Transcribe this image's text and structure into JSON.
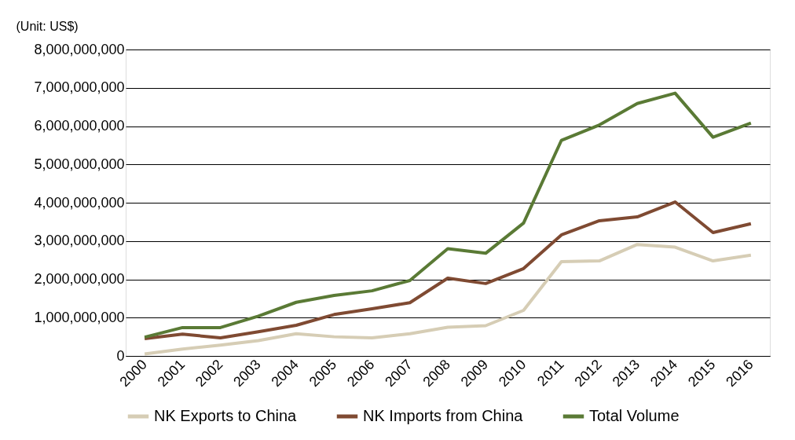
{
  "chart_data": {
    "type": "line",
    "ylabel": "(Unit: US$)",
    "categories": [
      "2000",
      "2001",
      "2002",
      "2003",
      "2004",
      "2005",
      "2006",
      "2007",
      "2008",
      "2009",
      "2010",
      "2011",
      "2012",
      "2013",
      "2014",
      "2015",
      "2016"
    ],
    "series": [
      {
        "name": "NK Exports to China",
        "color": "#d6cdb5",
        "values": [
          50000000,
          180000000,
          280000000,
          400000000,
          580000000,
          500000000,
          470000000,
          580000000,
          750000000,
          790000000,
          1190000000,
          2460000000,
          2480000000,
          2910000000,
          2840000000,
          2480000000,
          2630000000
        ]
      },
      {
        "name": "NK Imports from China",
        "color": "#7f4a32",
        "values": [
          450000000,
          570000000,
          470000000,
          630000000,
          800000000,
          1080000000,
          1230000000,
          1390000000,
          2030000000,
          1890000000,
          2280000000,
          3160000000,
          3530000000,
          3630000000,
          4020000000,
          3220000000,
          3450000000
        ]
      },
      {
        "name": "Total Volume",
        "color": "#5a7a35",
        "values": [
          490000000,
          740000000,
          740000000,
          1040000000,
          1400000000,
          1580000000,
          1700000000,
          1970000000,
          2800000000,
          2680000000,
          3470000000,
          5630000000,
          6030000000,
          6590000000,
          6860000000,
          5710000000,
          6080000000
        ]
      }
    ],
    "ylim": [
      0,
      8000000000
    ],
    "yticks": [
      0,
      {
        "value": 1000000000,
        "label": "1,000,000,000"
      },
      {
        "value": 2000000000,
        "label": "2,000,000,000"
      },
      {
        "value": 3000000000,
        "label": "3,000,000,000"
      },
      {
        "value": 4000000000,
        "label": "4,000,000,000"
      },
      {
        "value": 5000000000,
        "label": "5,000,000,000"
      },
      {
        "value": 6000000000,
        "label": "6,000,000,000"
      },
      {
        "value": 7000000000,
        "label": "7,000,000,000"
      },
      {
        "value": 8000000000,
        "label": "8,000,000,000"
      }
    ],
    "grid": "y",
    "legend": "bottom",
    "marker": "none",
    "line_style": "solid"
  }
}
